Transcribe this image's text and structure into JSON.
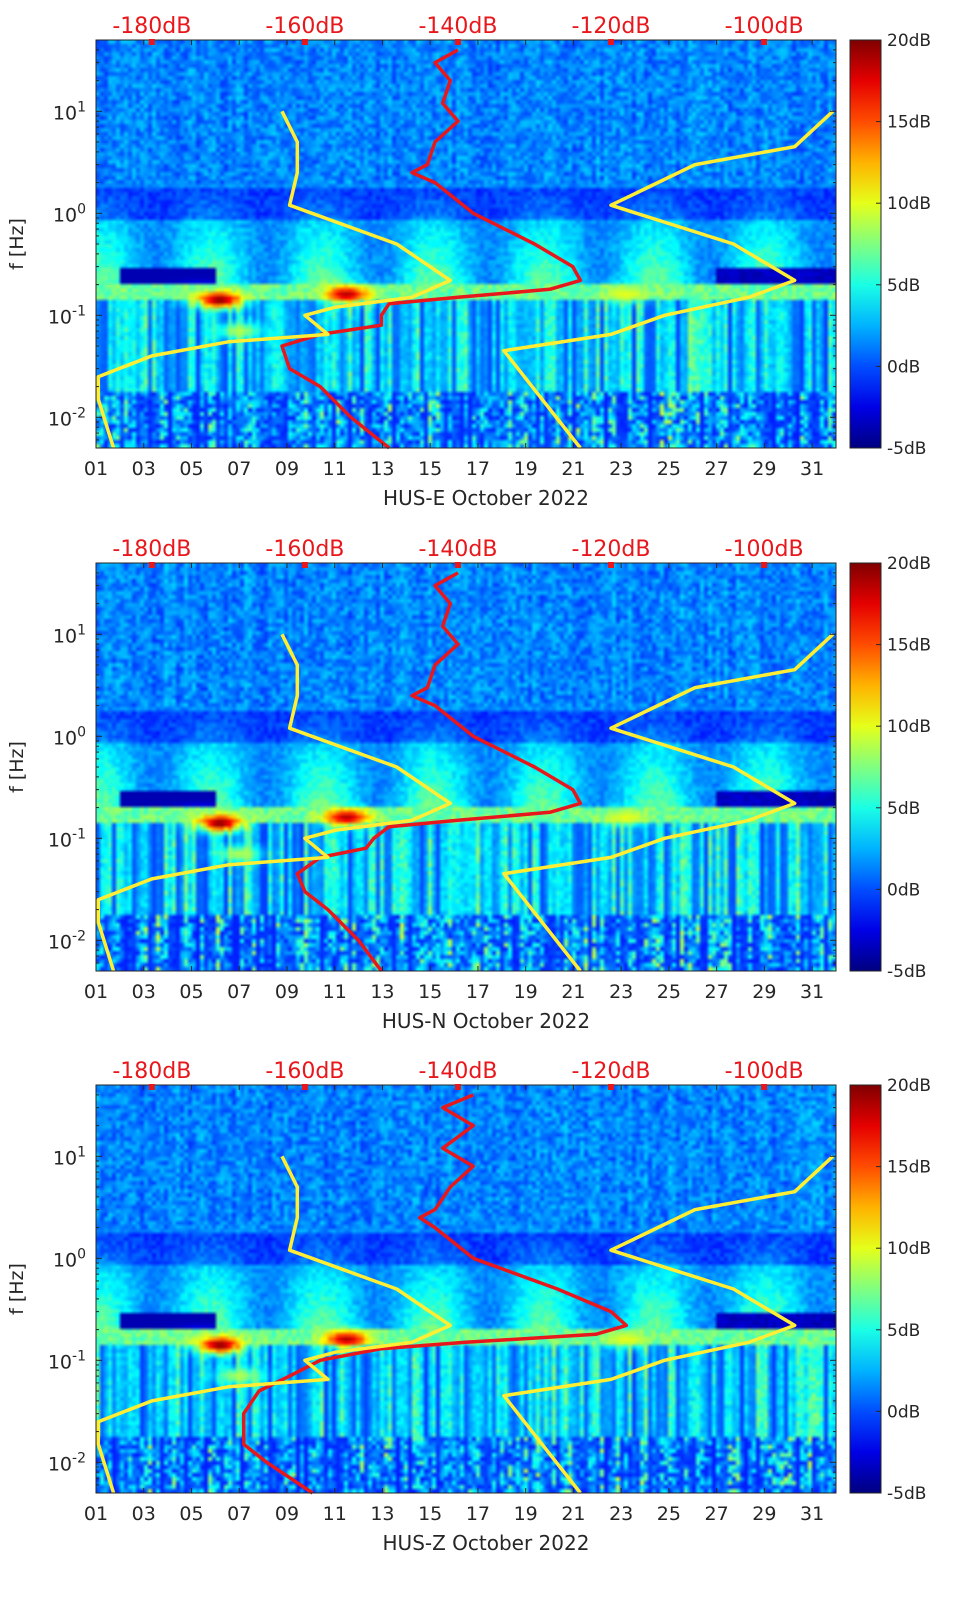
{
  "colors": {
    "noise_model_curve": "#e8171c",
    "reference_curves": "#ffee33",
    "top_axis_text": "#e8171c",
    "axis_text": "#262626"
  },
  "chart_data": [
    {
      "type": "heatmap",
      "title": "",
      "xlabel": "HUS-E October 2022",
      "ylabel": "f [Hz]",
      "x_ticks": [
        "01",
        "03",
        "05",
        "07",
        "09",
        "11",
        "13",
        "15",
        "17",
        "19",
        "21",
        "23",
        "25",
        "27",
        "29",
        "31"
      ],
      "xlim": [
        1,
        32
      ],
      "y_scale": "log",
      "y_tick_labels": [
        "10^-2",
        "10^-1",
        "10^0",
        "10^1"
      ],
      "y_tick_values": [
        0.01,
        0.1,
        1,
        10
      ],
      "ylim": [
        0.005,
        50
      ],
      "top_axis_ticks": [
        "-180dB",
        "-160dB",
        "-140dB",
        "-120dB",
        "-100dB"
      ],
      "top_axis_values": [
        -180,
        -160,
        -140,
        -120,
        -100
      ],
      "top_axis_range": [
        -187.3,
        -90.6
      ],
      "colorbar": {
        "ticks": [
          "20dB",
          "15dB",
          "10dB",
          "5dB",
          "0dB",
          "-5dB"
        ],
        "range": [
          -5,
          20
        ]
      },
      "series": [
        {
          "role": "red-psd-curve",
          "points": [
            [
              -140,
              40
            ],
            [
              -143,
              30
            ],
            [
              -141,
              20
            ],
            [
              -142,
              12
            ],
            [
              -140,
              8
            ],
            [
              -143,
              5
            ],
            [
              -144,
              3
            ],
            [
              -146,
              2.5
            ],
            [
              -143,
              2
            ],
            [
              -138,
              1
            ],
            [
              -130,
              0.5
            ],
            [
              -125,
              0.3
            ],
            [
              -124,
              0.22
            ],
            [
              -128,
              0.18
            ],
            [
              -140,
              0.15
            ],
            [
              -149,
              0.13
            ],
            [
              -150,
              0.1
            ],
            [
              -150,
              0.08
            ],
            [
              -158,
              0.065
            ],
            [
              -163,
              0.05
            ],
            [
              -162,
              0.03
            ],
            [
              -158,
              0.02
            ],
            [
              -154,
              0.01
            ],
            [
              -149,
              0.005
            ]
          ]
        },
        {
          "role": "yellow-low-model",
          "points": [
            [
              -163,
              10
            ],
            [
              -161,
              5
            ],
            [
              -161,
              2.5
            ],
            [
              -162,
              1.2
            ],
            [
              -148,
              0.5
            ],
            [
              -141,
              0.22
            ],
            [
              -146,
              0.15
            ],
            [
              -156,
              0.12
            ],
            [
              -160,
              0.1
            ],
            [
              -157,
              0.065
            ],
            [
              -170,
              0.055
            ],
            [
              -180,
              0.04
            ],
            [
              -187,
              0.025
            ],
            [
              -187,
              0.015
            ],
            [
              -185,
              0.005
            ]
          ]
        },
        {
          "role": "yellow-high-model",
          "points": [
            [
              -91,
              10
            ],
            [
              -96,
              4.5
            ],
            [
              -109,
              3
            ],
            [
              -120,
              1.2
            ],
            [
              -104,
              0.5
            ],
            [
              -96,
              0.22
            ],
            [
              -102,
              0.15
            ],
            [
              -113,
              0.1
            ],
            [
              -120,
              0.065
            ],
            [
              -134,
              0.045
            ],
            [
              -124,
              0.005
            ]
          ]
        }
      ]
    },
    {
      "type": "heatmap",
      "title": "",
      "xlabel": "HUS-N October 2022",
      "ylabel": "f [Hz]",
      "x_ticks": [
        "01",
        "03",
        "05",
        "07",
        "09",
        "11",
        "13",
        "15",
        "17",
        "19",
        "21",
        "23",
        "25",
        "27",
        "29",
        "31"
      ],
      "xlim": [
        1,
        32
      ],
      "y_scale": "log",
      "y_tick_labels": [
        "10^-2",
        "10^-1",
        "10^0",
        "10^1"
      ],
      "y_tick_values": [
        0.01,
        0.1,
        1,
        10
      ],
      "ylim": [
        0.005,
        50
      ],
      "top_axis_ticks": [
        "-180dB",
        "-160dB",
        "-140dB",
        "-120dB",
        "-100dB"
      ],
      "top_axis_values": [
        -180,
        -160,
        -140,
        -120,
        -100
      ],
      "top_axis_range": [
        -187.3,
        -90.6
      ],
      "colorbar": {
        "ticks": [
          "20dB",
          "15dB",
          "10dB",
          "5dB",
          "0dB",
          "-5dB"
        ],
        "range": [
          -5,
          20
        ]
      },
      "series": [
        {
          "role": "red-psd-curve",
          "points": [
            [
              -140,
              40
            ],
            [
              -143,
              30
            ],
            [
              -141,
              20
            ],
            [
              -142,
              12
            ],
            [
              -140,
              8
            ],
            [
              -143,
              5
            ],
            [
              -144,
              3
            ],
            [
              -146,
              2.5
            ],
            [
              -143,
              2
            ],
            [
              -138,
              1
            ],
            [
              -130,
              0.5
            ],
            [
              -125,
              0.3
            ],
            [
              -124,
              0.22
            ],
            [
              -128,
              0.18
            ],
            [
              -140,
              0.15
            ],
            [
              -149,
              0.13
            ],
            [
              -151,
              0.1
            ],
            [
              -152,
              0.08
            ],
            [
              -158,
              0.065
            ],
            [
              -161,
              0.045
            ],
            [
              -160,
              0.03
            ],
            [
              -157,
              0.02
            ],
            [
              -153,
              0.01
            ],
            [
              -150,
              0.005
            ]
          ]
        },
        {
          "role": "yellow-low-model",
          "points": [
            [
              -163,
              10
            ],
            [
              -161,
              5
            ],
            [
              -161,
              2.5
            ],
            [
              -162,
              1.2
            ],
            [
              -148,
              0.5
            ],
            [
              -141,
              0.22
            ],
            [
              -146,
              0.15
            ],
            [
              -156,
              0.12
            ],
            [
              -160,
              0.1
            ],
            [
              -157,
              0.065
            ],
            [
              -170,
              0.055
            ],
            [
              -180,
              0.04
            ],
            [
              -187,
              0.025
            ],
            [
              -187,
              0.015
            ],
            [
              -185,
              0.005
            ]
          ]
        },
        {
          "role": "yellow-high-model",
          "points": [
            [
              -91,
              10
            ],
            [
              -96,
              4.5
            ],
            [
              -109,
              3
            ],
            [
              -120,
              1.2
            ],
            [
              -104,
              0.5
            ],
            [
              -96,
              0.22
            ],
            [
              -102,
              0.15
            ],
            [
              -113,
              0.1
            ],
            [
              -120,
              0.065
            ],
            [
              -134,
              0.045
            ],
            [
              -124,
              0.005
            ]
          ]
        }
      ]
    },
    {
      "type": "heatmap",
      "title": "",
      "xlabel": "HUS-Z October 2022",
      "ylabel": "f [Hz]",
      "x_ticks": [
        "01",
        "03",
        "05",
        "07",
        "09",
        "11",
        "13",
        "15",
        "17",
        "19",
        "21",
        "23",
        "25",
        "27",
        "29",
        "31"
      ],
      "xlim": [
        1,
        32
      ],
      "y_scale": "log",
      "y_tick_labels": [
        "10^-2",
        "10^-1",
        "10^0",
        "10^1"
      ],
      "y_tick_values": [
        0.01,
        0.1,
        1,
        10
      ],
      "ylim": [
        0.005,
        50
      ],
      "top_axis_ticks": [
        "-180dB",
        "-160dB",
        "-140dB",
        "-120dB",
        "-100dB"
      ],
      "top_axis_values": [
        -180,
        -160,
        -140,
        -120,
        -100
      ],
      "top_axis_range": [
        -187.3,
        -90.6
      ],
      "colorbar": {
        "ticks": [
          "20dB",
          "15dB",
          "10dB",
          "5dB",
          "0dB",
          "-5dB"
        ],
        "range": [
          -5,
          20
        ]
      },
      "series": [
        {
          "role": "red-psd-curve",
          "points": [
            [
              -138,
              40
            ],
            [
              -142,
              30
            ],
            [
              -138,
              20
            ],
            [
              -142,
              12
            ],
            [
              -138,
              8
            ],
            [
              -141,
              5
            ],
            [
              -143,
              3
            ],
            [
              -145,
              2.5
            ],
            [
              -143,
              2
            ],
            [
              -138,
              1
            ],
            [
              -127,
              0.5
            ],
            [
              -120,
              0.3
            ],
            [
              -118,
              0.22
            ],
            [
              -122,
              0.18
            ],
            [
              -139,
              0.15
            ],
            [
              -150,
              0.13
            ],
            [
              -158,
              0.1
            ],
            [
              -162,
              0.07
            ],
            [
              -166,
              0.05
            ],
            [
              -168,
              0.03
            ],
            [
              -168,
              0.015
            ],
            [
              -165,
              0.01
            ],
            [
              -159,
              0.005
            ]
          ]
        },
        {
          "role": "yellow-low-model",
          "points": [
            [
              -163,
              10
            ],
            [
              -161,
              5
            ],
            [
              -161,
              2.5
            ],
            [
              -162,
              1.2
            ],
            [
              -148,
              0.5
            ],
            [
              -141,
              0.22
            ],
            [
              -146,
              0.15
            ],
            [
              -156,
              0.12
            ],
            [
              -160,
              0.1
            ],
            [
              -157,
              0.065
            ],
            [
              -170,
              0.055
            ],
            [
              -180,
              0.04
            ],
            [
              -187,
              0.025
            ],
            [
              -187,
              0.015
            ],
            [
              -185,
              0.005
            ]
          ]
        },
        {
          "role": "yellow-high-model",
          "points": [
            [
              -91,
              10
            ],
            [
              -96,
              4.5
            ],
            [
              -109,
              3
            ],
            [
              -120,
              1.2
            ],
            [
              -104,
              0.5
            ],
            [
              -96,
              0.22
            ],
            [
              -102,
              0.15
            ],
            [
              -113,
              0.1
            ],
            [
              -120,
              0.065
            ],
            [
              -134,
              0.045
            ],
            [
              -124,
              0.005
            ]
          ]
        }
      ]
    }
  ]
}
